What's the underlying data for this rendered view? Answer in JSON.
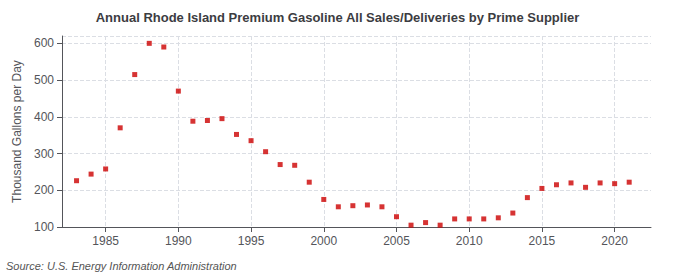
{
  "chart_data": {
    "type": "scatter",
    "title": "Annual Rhode Island Premium Gasoline All Sales/Deliveries by Prime Supplier",
    "ylabel": "Thousand Gallons per Day",
    "annotations": [
      "Source: U.S. Energy Information Administration"
    ],
    "x": [
      1983,
      1984,
      1985,
      1986,
      1987,
      1988,
      1989,
      1990,
      1991,
      1992,
      1993,
      1994,
      1995,
      1996,
      1997,
      1998,
      1999,
      2000,
      2001,
      2002,
      2003,
      2004,
      2005,
      2006,
      2007,
      2008,
      2009,
      2010,
      2011,
      2012,
      2013,
      2014,
      2015,
      2016,
      2017,
      2018,
      2019,
      2020,
      2021
    ],
    "values": [
      226,
      244,
      258,
      370,
      515,
      600,
      590,
      470,
      388,
      390,
      395,
      352,
      335,
      305,
      270,
      268,
      222,
      175,
      155,
      158,
      160,
      155,
      128,
      105,
      112,
      105,
      122,
      122,
      122,
      125,
      138,
      180,
      205,
      215,
      220,
      208,
      220,
      218,
      222
    ],
    "color": "#cc0000",
    "marker": "square",
    "xlim": [
      1982,
      2022.5
    ],
    "ylim": [
      100,
      620
    ],
    "xticks": [
      1985,
      1990,
      1995,
      2000,
      2005,
      2010,
      2015,
      2020
    ],
    "yticks": [
      100,
      200,
      300,
      400,
      500,
      600
    ],
    "grid": true
  }
}
